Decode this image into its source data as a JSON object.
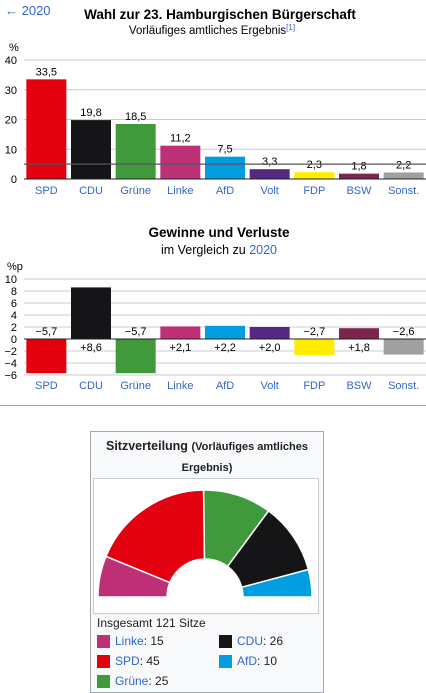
{
  "nav": {
    "back_label": "← 2020"
  },
  "colors": {
    "SPD": "#e3000f",
    "CDU": "#151518",
    "Gruene": "#409a3c",
    "Linke": "#be3075",
    "AfD": "#009ee0",
    "Volt": "#562883",
    "FDP": "#ffed00",
    "BSW": "#7d254f",
    "Sonst": "#a0a0a0",
    "link": "#3366cc"
  },
  "chart_data": [
    {
      "type": "bar",
      "title": "Wahl zur 23. Hamburgischen Bürgerschaft",
      "subtitle": "Vorläufiges amtliches Ergebnis",
      "footnote": "[1]",
      "ylabel": "%",
      "ylim": [
        0,
        40
      ],
      "yticks": [
        0,
        10,
        20,
        30,
        40
      ],
      "threshold_line": 5,
      "categories": [
        "SPD",
        "CDU",
        "Grüne",
        "Linke",
        "AfD",
        "Volt",
        "FDP",
        "BSW",
        "Sonst."
      ],
      "values": [
        33.5,
        19.8,
        18.5,
        11.2,
        7.5,
        3.3,
        2.3,
        1.8,
        2.2
      ],
      "value_labels": [
        "33,5",
        "19,8",
        "18,5",
        "11,2",
        "7,5",
        "3,3",
        "2,3",
        "1,8",
        "2,2"
      ]
    },
    {
      "type": "bar",
      "title": "Gewinne und Verluste",
      "subtitle_prefix": "im Vergleich zu ",
      "subtitle_link": "2020",
      "ylabel": "%p",
      "ylim": [
        -6,
        10
      ],
      "yticks": [
        -6,
        -4,
        -2,
        0,
        2,
        4,
        6,
        8,
        10
      ],
      "categories": [
        "SPD",
        "CDU",
        "Grüne",
        "Linke",
        "AfD",
        "Volt",
        "FDP",
        "BSW",
        "Sonst."
      ],
      "values": [
        -5.7,
        8.6,
        -5.7,
        2.1,
        2.2,
        2.0,
        -2.7,
        1.8,
        -2.6
      ],
      "value_labels": [
        "−5,7",
        "+8,6",
        "−5,7",
        "+2,1",
        "+2,2",
        "+2,0",
        "−2,7",
        "+1,8",
        "−2,6"
      ]
    },
    {
      "type": "pie",
      "title": "Sitzverteilung",
      "subtitle": "(Vorläufiges amtliches Ergebnis)",
      "total_label": "Insgesamt 121 Sitze",
      "categories": [
        "Linke",
        "SPD",
        "Grüne",
        "CDU",
        "AfD"
      ],
      "values": [
        15,
        45,
        25,
        26,
        10
      ]
    }
  ],
  "seat_legend": [
    {
      "party": "Linke",
      "label": "Linke: 15"
    },
    {
      "party": "CDU",
      "label": "CDU: 26"
    },
    {
      "party": "SPD",
      "label": "SPD: 45"
    },
    {
      "party": "AfD",
      "label": "AfD: 10"
    },
    {
      "party": "Gruene",
      "label": "Grüne: 25"
    }
  ]
}
